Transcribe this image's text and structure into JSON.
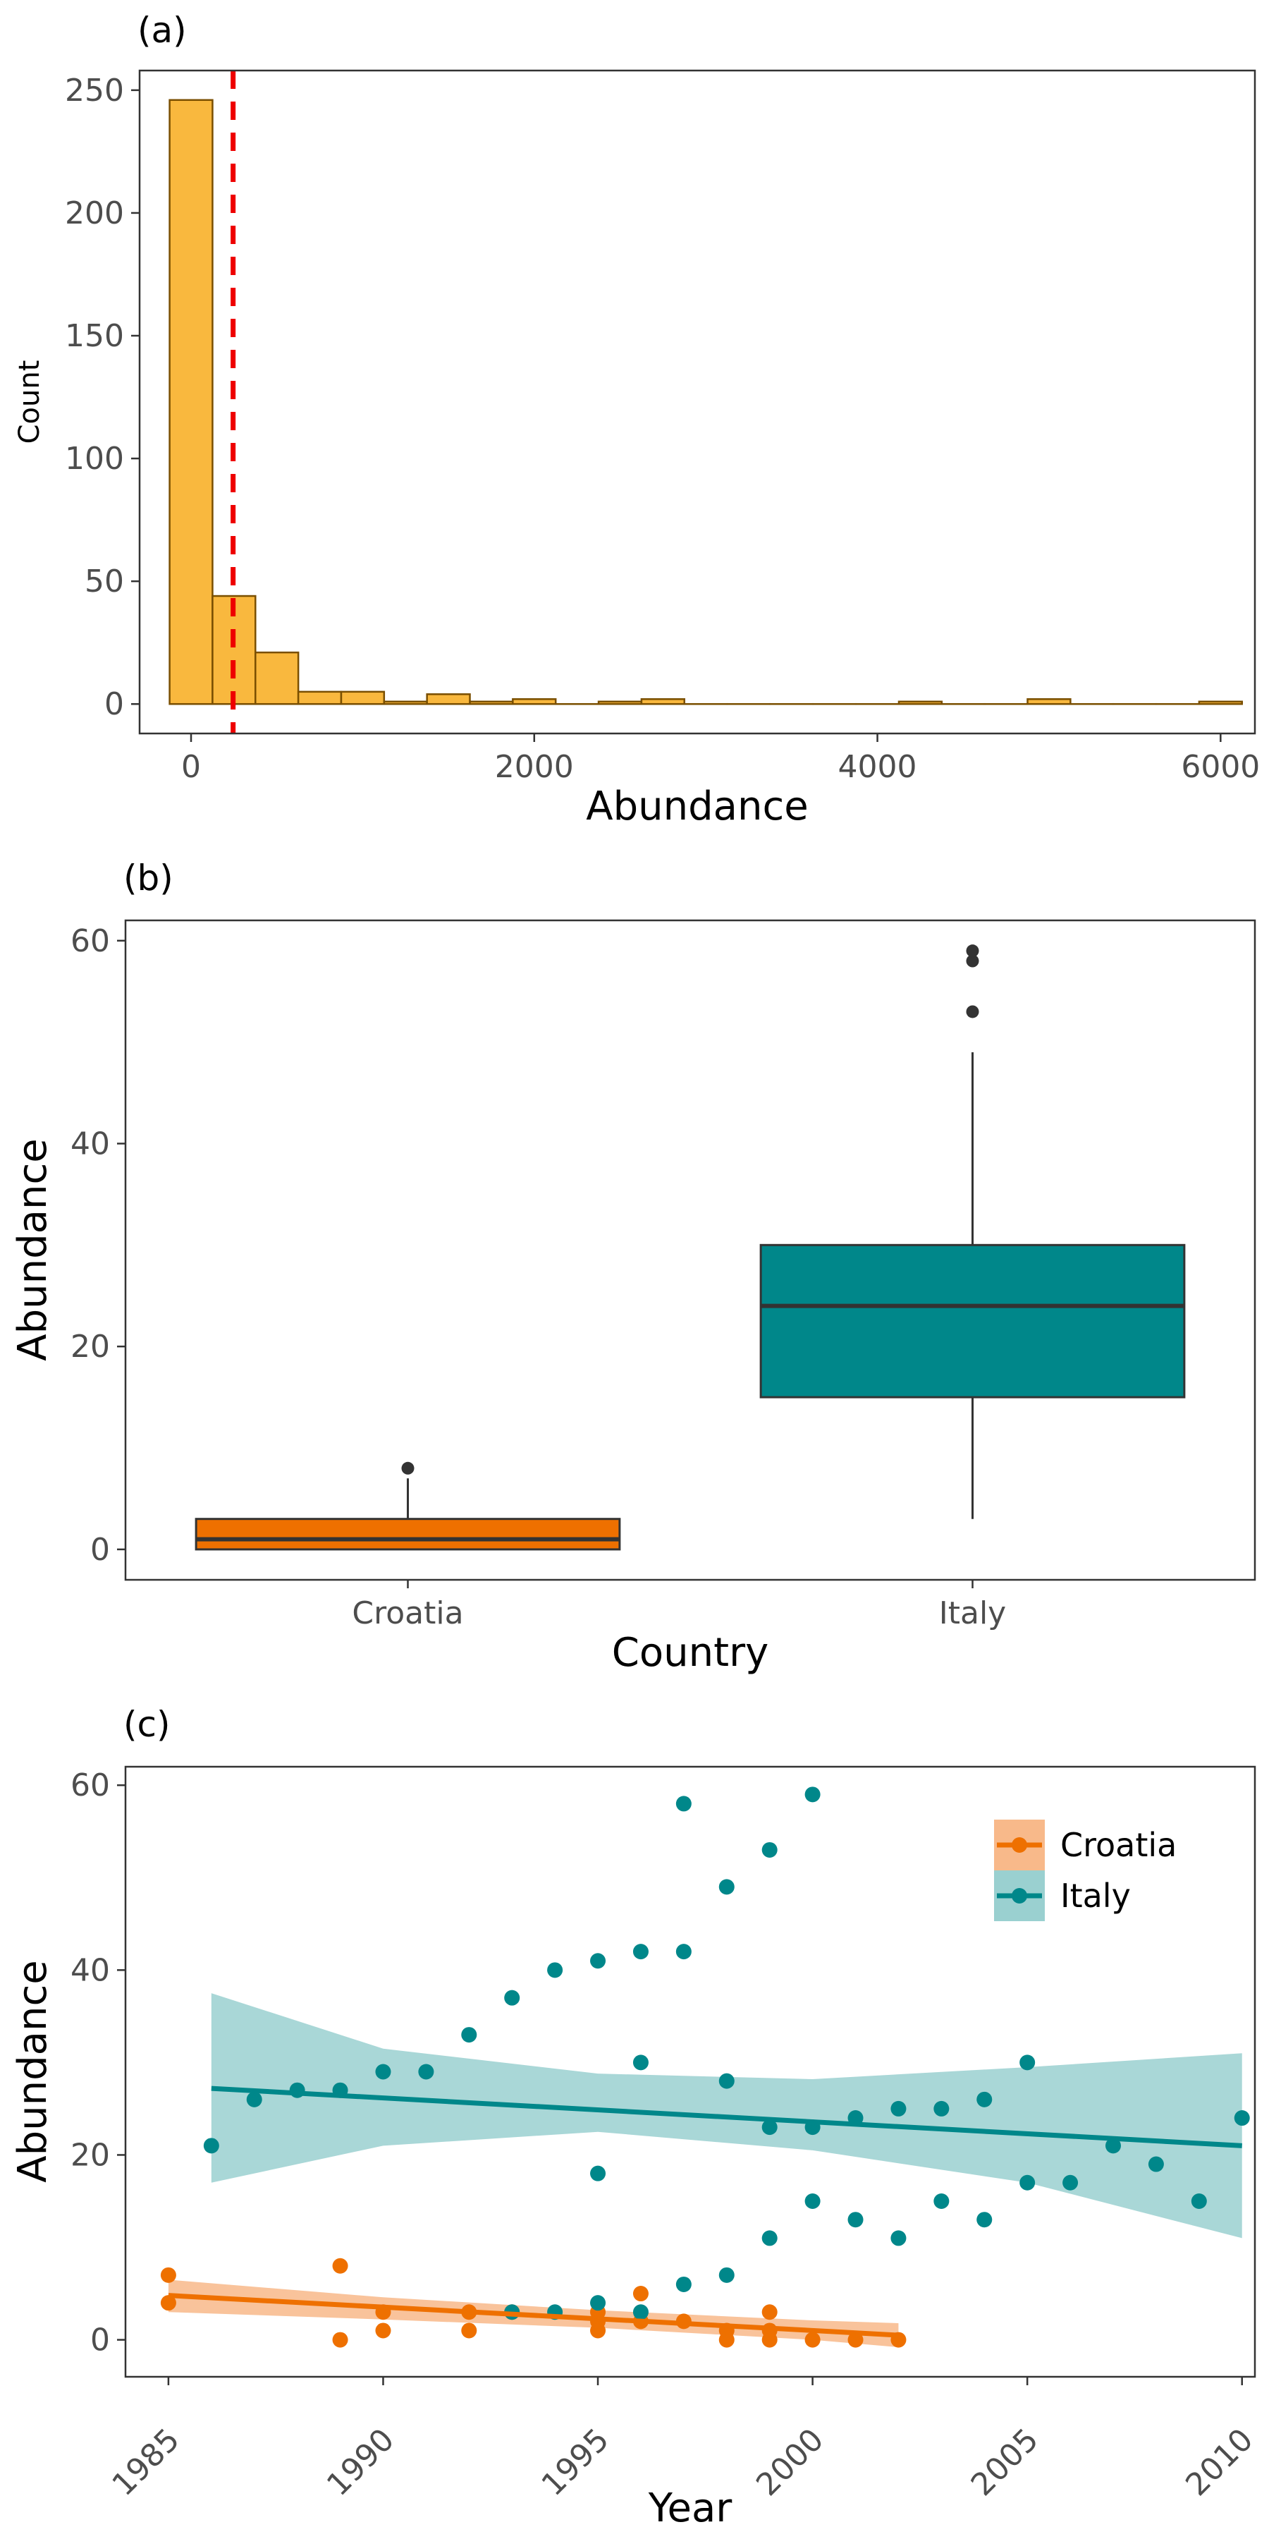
{
  "chart_data": [
    {
      "panel": "(a)",
      "type": "bar",
      "subtype": "histogram",
      "xlabel": "Abundance",
      "ylabel": "Count",
      "xlim": [
        -300,
        6200
      ],
      "ylim": [
        -12,
        258
      ],
      "xticks": [
        0,
        2000,
        4000,
        6000
      ],
      "xtick_labels": [
        "0",
        "2000",
        "4000",
        "6000"
      ],
      "yticks": [
        0,
        50,
        100,
        150,
        200,
        250
      ],
      "ytick_labels": [
        "0",
        "50",
        "100",
        "150",
        "200",
        "250"
      ],
      "bin_width": 250,
      "bin_centers": [
        0,
        250,
        500,
        750,
        1000,
        1250,
        1500,
        1750,
        2000,
        2250,
        2500,
        2750,
        3000,
        3250,
        3500,
        3750,
        4000,
        4250,
        4500,
        4750,
        5000,
        5250,
        5500,
        5750,
        6000
      ],
      "values": [
        246,
        44,
        21,
        5,
        5,
        1,
        4,
        1,
        2,
        0,
        1,
        2,
        0,
        0,
        0,
        0,
        0,
        1,
        0,
        0,
        2,
        0,
        0,
        0,
        1
      ],
      "reference_line": {
        "x": 245,
        "style": "dashed",
        "color": "#ee0000"
      },
      "fill_color": "#f9b83e",
      "edge_color": "#7a4f00",
      "grid": false,
      "legend": "none"
    },
    {
      "panel": "(b)",
      "type": "boxplot",
      "xlabel": "Country",
      "ylabel": "Abundance",
      "categories": [
        "Croatia",
        "Italy"
      ],
      "ylim": [
        -3,
        62
      ],
      "yticks": [
        0,
        20,
        40,
        60
      ],
      "ytick_labels": [
        "0",
        "20",
        "40",
        "60"
      ],
      "boxes": [
        {
          "category": "Croatia",
          "q1": 0,
          "median": 1,
          "q3": 3,
          "whisker_low": 0,
          "whisker_high": 7,
          "outliers": [
            8
          ],
          "color": "#ee7000"
        },
        {
          "category": "Italy",
          "q1": 15,
          "median": 24,
          "q3": 30,
          "whisker_low": 3,
          "whisker_high": 49,
          "outliers": [
            53,
            58,
            59
          ],
          "color": "#00878a"
        }
      ],
      "grid": false,
      "legend": "none"
    },
    {
      "panel": "(c)",
      "type": "scatter",
      "xlabel": "Year",
      "ylabel": "Abundance",
      "xlim": [
        1984,
        2010.3
      ],
      "ylim": [
        -4,
        62
      ],
      "xticks": [
        1985,
        1990,
        1995,
        2000,
        2005,
        2010
      ],
      "xtick_labels": [
        "1985",
        "1990",
        "1995",
        "2000",
        "2005",
        "2010"
      ],
      "yticks": [
        0,
        20,
        40,
        60
      ],
      "ytick_labels": [
        "0",
        "20",
        "40",
        "60"
      ],
      "grid": false,
      "legend": "top-right",
      "series": [
        {
          "name": "Croatia",
          "color": "#ee7000",
          "band_color": "#f8b98a",
          "points": [
            [
              1985,
              7
            ],
            [
              1985,
              4
            ],
            [
              1989,
              8
            ],
            [
              1989,
              0
            ],
            [
              1990,
              3
            ],
            [
              1990,
              1
            ],
            [
              1992,
              3
            ],
            [
              1992,
              1
            ],
            [
              1993,
              3
            ],
            [
              1995,
              3
            ],
            [
              1995,
              2
            ],
            [
              1995,
              1
            ],
            [
              1996,
              5
            ],
            [
              1996,
              2
            ],
            [
              1997,
              2
            ],
            [
              1998,
              1
            ],
            [
              1998,
              0
            ],
            [
              1999,
              3
            ],
            [
              1999,
              1
            ],
            [
              1999,
              0
            ],
            [
              2000,
              0
            ],
            [
              2001,
              0
            ],
            [
              2002,
              0
            ]
          ],
          "trend": {
            "x": [
              1985,
              2002
            ],
            "y": [
              4.8,
              0.5
            ]
          },
          "band": {
            "x": [
              1985,
              1990,
              1995,
              2000,
              2002
            ],
            "lower": [
              3.0,
              2.2,
              1.3,
              0.0,
              -0.8
            ],
            "upper": [
              6.5,
              4.6,
              3.2,
              2.1,
              1.8
            ]
          }
        },
        {
          "name": "Italy",
          "color": "#00878a",
          "band_color": "#9ad0d0",
          "points": [
            [
              1986,
              21
            ],
            [
              1987,
              26
            ],
            [
              1988,
              27
            ],
            [
              1989,
              27
            ],
            [
              1990,
              29
            ],
            [
              1991,
              29
            ],
            [
              1992,
              33
            ],
            [
              1993,
              37
            ],
            [
              1993,
              3
            ],
            [
              1994,
              40
            ],
            [
              1994,
              3
            ],
            [
              1995,
              41
            ],
            [
              1995,
              18
            ],
            [
              1995,
              4
            ],
            [
              1996,
              42
            ],
            [
              1996,
              30
            ],
            [
              1996,
              3
            ],
            [
              1997,
              58
            ],
            [
              1997,
              42
            ],
            [
              1997,
              6
            ],
            [
              1998,
              49
            ],
            [
              1998,
              28
            ],
            [
              1998,
              7
            ],
            [
              1999,
              53
            ],
            [
              1999,
              23
            ],
            [
              1999,
              11
            ],
            [
              2000,
              59
            ],
            [
              2000,
              23
            ],
            [
              2000,
              15
            ],
            [
              2001,
              24
            ],
            [
              2001,
              13
            ],
            [
              2002,
              25
            ],
            [
              2002,
              11
            ],
            [
              2003,
              25
            ],
            [
              2003,
              15
            ],
            [
              2004,
              26
            ],
            [
              2004,
              13
            ],
            [
              2005,
              30
            ],
            [
              2005,
              17
            ],
            [
              2006,
              17
            ],
            [
              2007,
              21
            ],
            [
              2008,
              19
            ],
            [
              2009,
              15
            ],
            [
              2010,
              24
            ]
          ],
          "trend": {
            "x": [
              1986,
              2010
            ],
            "y": [
              27.2,
              21.0
            ]
          },
          "band": {
            "x": [
              1986,
              1990,
              1995,
              2000,
              2005,
              2010
            ],
            "lower": [
              17.0,
              21.0,
              22.5,
              20.5,
              17.0,
              11.0
            ],
            "upper": [
              37.5,
              31.5,
              28.8,
              28.2,
              29.5,
              31.0
            ]
          }
        }
      ]
    }
  ]
}
